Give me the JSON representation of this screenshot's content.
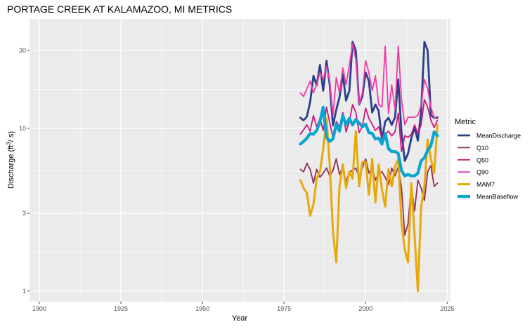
{
  "chart_data": {
    "type": "line",
    "title": "PORTAGE CREEK AT KALAMAZOO, MI  METRICS",
    "xlabel": "Year",
    "ylabel": "Discharge (ft³/ s)",
    "y_scale": "log10",
    "xlim": [
      1897,
      2026
    ],
    "ylim": [
      0.86,
      47
    ],
    "x_ticks": [
      1900,
      1925,
      1950,
      1975,
      2000,
      2025
    ],
    "y_ticks": [
      1,
      3,
      10,
      30
    ],
    "grid": true,
    "legend": {
      "title": "Metric",
      "position": "right"
    },
    "x": [
      1980,
      1981,
      1982,
      1983,
      1984,
      1985,
      1986,
      1987,
      1988,
      1989,
      1990,
      1991,
      1992,
      1993,
      1994,
      1995,
      1996,
      1997,
      1998,
      1999,
      2000,
      2001,
      2002,
      2003,
      2004,
      2005,
      2006,
      2007,
      2008,
      2009,
      2010,
      2011,
      2012,
      2013,
      2014,
      2015,
      2016,
      2017,
      2018,
      2019,
      2020,
      2021,
      2022
    ],
    "series": [
      {
        "name": "MeanDischarge",
        "color": "#2b3e8c",
        "width": 2.8,
        "values": [
          11.6,
          11.2,
          11.8,
          14.5,
          21,
          18.4,
          24.5,
          17,
          26,
          18.5,
          10.4,
          13,
          15.5,
          21.5,
          14.8,
          17,
          34,
          30,
          14,
          15.7,
          22,
          19.5,
          12.5,
          14,
          12.8,
          8.5,
          11,
          11.6,
          10.5,
          11.7,
          20,
          9.4,
          6.3,
          7,
          8.7,
          10.1,
          8.4,
          12.6,
          34,
          30,
          12,
          11.6,
          11.6
        ]
      },
      {
        "name": "Q10",
        "color": "#8b2f5a",
        "width": 1.8,
        "values": [
          5.6,
          5.4,
          6.1,
          5.6,
          4.6,
          5.6,
          5,
          5.3,
          5.7,
          5.1,
          5.5,
          6.5,
          5.2,
          5.8,
          4.7,
          5.4,
          5.5,
          5.7,
          5,
          5.7,
          6.5,
          5.3,
          5.7,
          4.8,
          5.3,
          5.4,
          5,
          4.5,
          5.7,
          5.1,
          5.8,
          4.3,
          2.2,
          2.6,
          4.4,
          3.1,
          4.8,
          4.3,
          3.6,
          5.4,
          5.9,
          4.4,
          4.6
        ]
      },
      {
        "name": "Q50",
        "color": "#cc1880",
        "width": 1.8,
        "values": [
          9.2,
          9.8,
          10.5,
          9.6,
          12,
          10.2,
          11.5,
          9.7,
          13.5,
          10.8,
          8.8,
          11,
          10.2,
          12.5,
          9.5,
          11,
          14,
          12.5,
          9.4,
          10.3,
          13.3,
          11.5,
          10.6,
          9.7,
          10.2,
          8.7,
          9.2,
          9.6,
          9,
          9.5,
          12.4,
          7.2,
          9,
          8.8,
          9.2,
          10.5,
          9.3,
          10.5,
          15,
          13.5,
          11.2,
          10.1,
          11.2
        ]
      },
      {
        "name": "Q90",
        "color": "#f23aa8",
        "width": 1.8,
        "values": [
          16.5,
          15.7,
          17.5,
          19.5,
          16.5,
          18.6,
          22,
          20,
          24,
          19.5,
          12,
          20.5,
          16.5,
          23.5,
          18.5,
          24.5,
          33,
          26.5,
          14,
          16.5,
          26,
          22,
          17,
          21,
          14,
          13.5,
          32,
          12.3,
          18.5,
          13,
          32,
          15,
          10.5,
          11.7,
          11.7,
          11.7,
          12,
          13.8,
          20,
          17.5,
          13.5,
          11.6,
          11.8
        ]
      },
      {
        "name": "MAM7",
        "color": "#e8a80a",
        "width": 3.0,
        "values": [
          4.8,
          4.3,
          4,
          2.9,
          3.4,
          4.9,
          5.4,
          7.5,
          11.5,
          6,
          2.3,
          1.5,
          4.4,
          6,
          4.3,
          5.4,
          4.9,
          9.6,
          4.4,
          6.2,
          6.2,
          3.9,
          6.5,
          3.5,
          6,
          4.2,
          3.3,
          5.6,
          4.4,
          5.8,
          6.5,
          2.6,
          1.8,
          1.5,
          4.6,
          2.2,
          1,
          3.3,
          4.4,
          8.5,
          6.5,
          5.3,
          10.5
        ]
      },
      {
        "name": "MeanBaseflow",
        "color": "#0aa4d1",
        "width": 4.2,
        "values": [
          8,
          8.3,
          8.7,
          9.3,
          9.2,
          9.7,
          11,
          13.5,
          8.8,
          8.3,
          8.6,
          10.6,
          9.6,
          12,
          10.5,
          11.5,
          10.5,
          11.3,
          10.8,
          10.2,
          10.6,
          9.4,
          9.3,
          8.6,
          8.7,
          8,
          9.3,
          7.5,
          7.2,
          7.2,
          7,
          5.5,
          5.1,
          5.2,
          5.1,
          5.1,
          5.3,
          6.3,
          6.6,
          7.3,
          7.8,
          9.5,
          9
        ]
      }
    ]
  }
}
